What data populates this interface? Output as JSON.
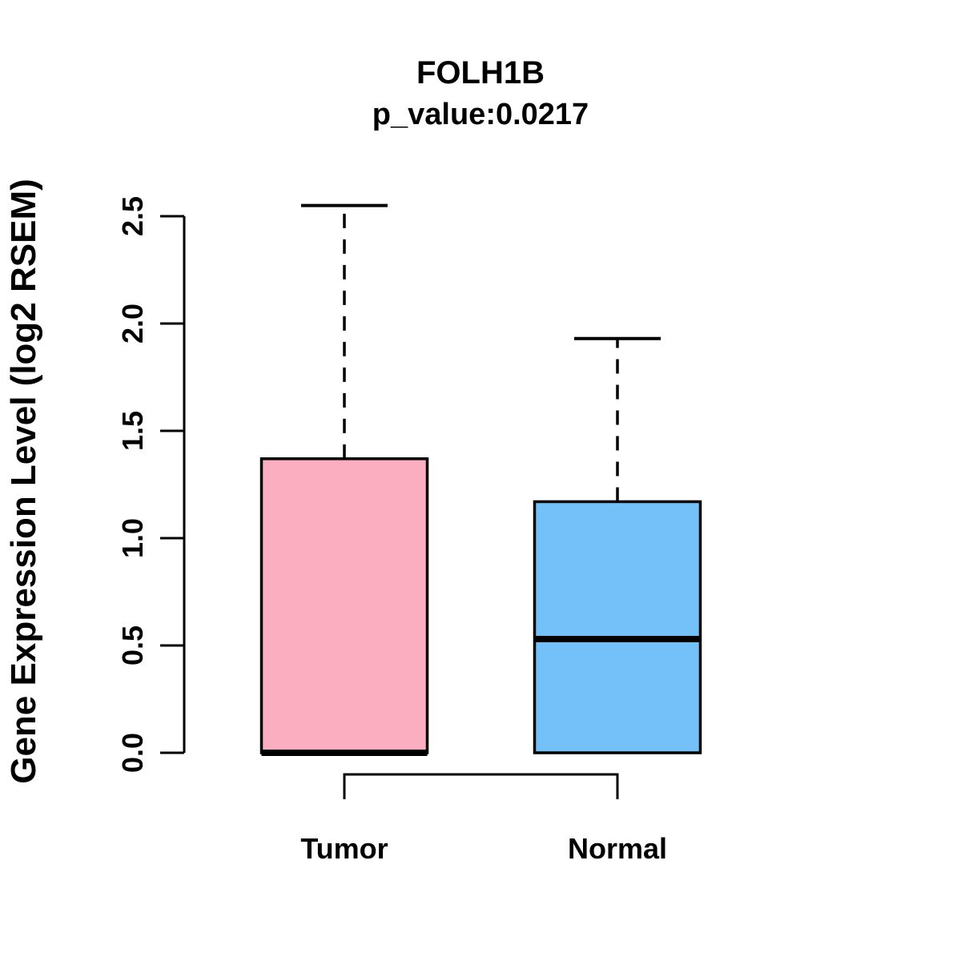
{
  "chart_data": {
    "type": "boxplot",
    "title": "FOLH1B",
    "subtitle": "p_value:0.0217",
    "ylabel": "Gene Expression Level (log2 RSEM)",
    "xlabel": "",
    "categories": [
      "Tumor",
      "Normal"
    ],
    "series": [
      {
        "name": "Tumor",
        "color": "#FCAEC1",
        "min": 0.0,
        "q1": 0.0,
        "median": 0.0,
        "q3": 1.37,
        "max": 2.55
      },
      {
        "name": "Normal",
        "color": "#74C0F8",
        "min": 0.0,
        "q1": 0.0,
        "median": 0.53,
        "q3": 1.17,
        "max": 1.93
      }
    ],
    "yticks": [
      "0.0",
      "0.5",
      "1.0",
      "1.5",
      "2.0",
      "2.5"
    ],
    "ylim": [
      0.0,
      2.55
    ],
    "grid": false,
    "legend": "none",
    "annotations": {
      "comparison_bracket": {
        "between": [
          "Tumor",
          "Normal"
        ]
      }
    },
    "colors": {
      "tumor_fill": "#FCAEC1",
      "normal_fill": "#74C0F8",
      "line": "#000000",
      "background": "#FFFFFF"
    }
  }
}
